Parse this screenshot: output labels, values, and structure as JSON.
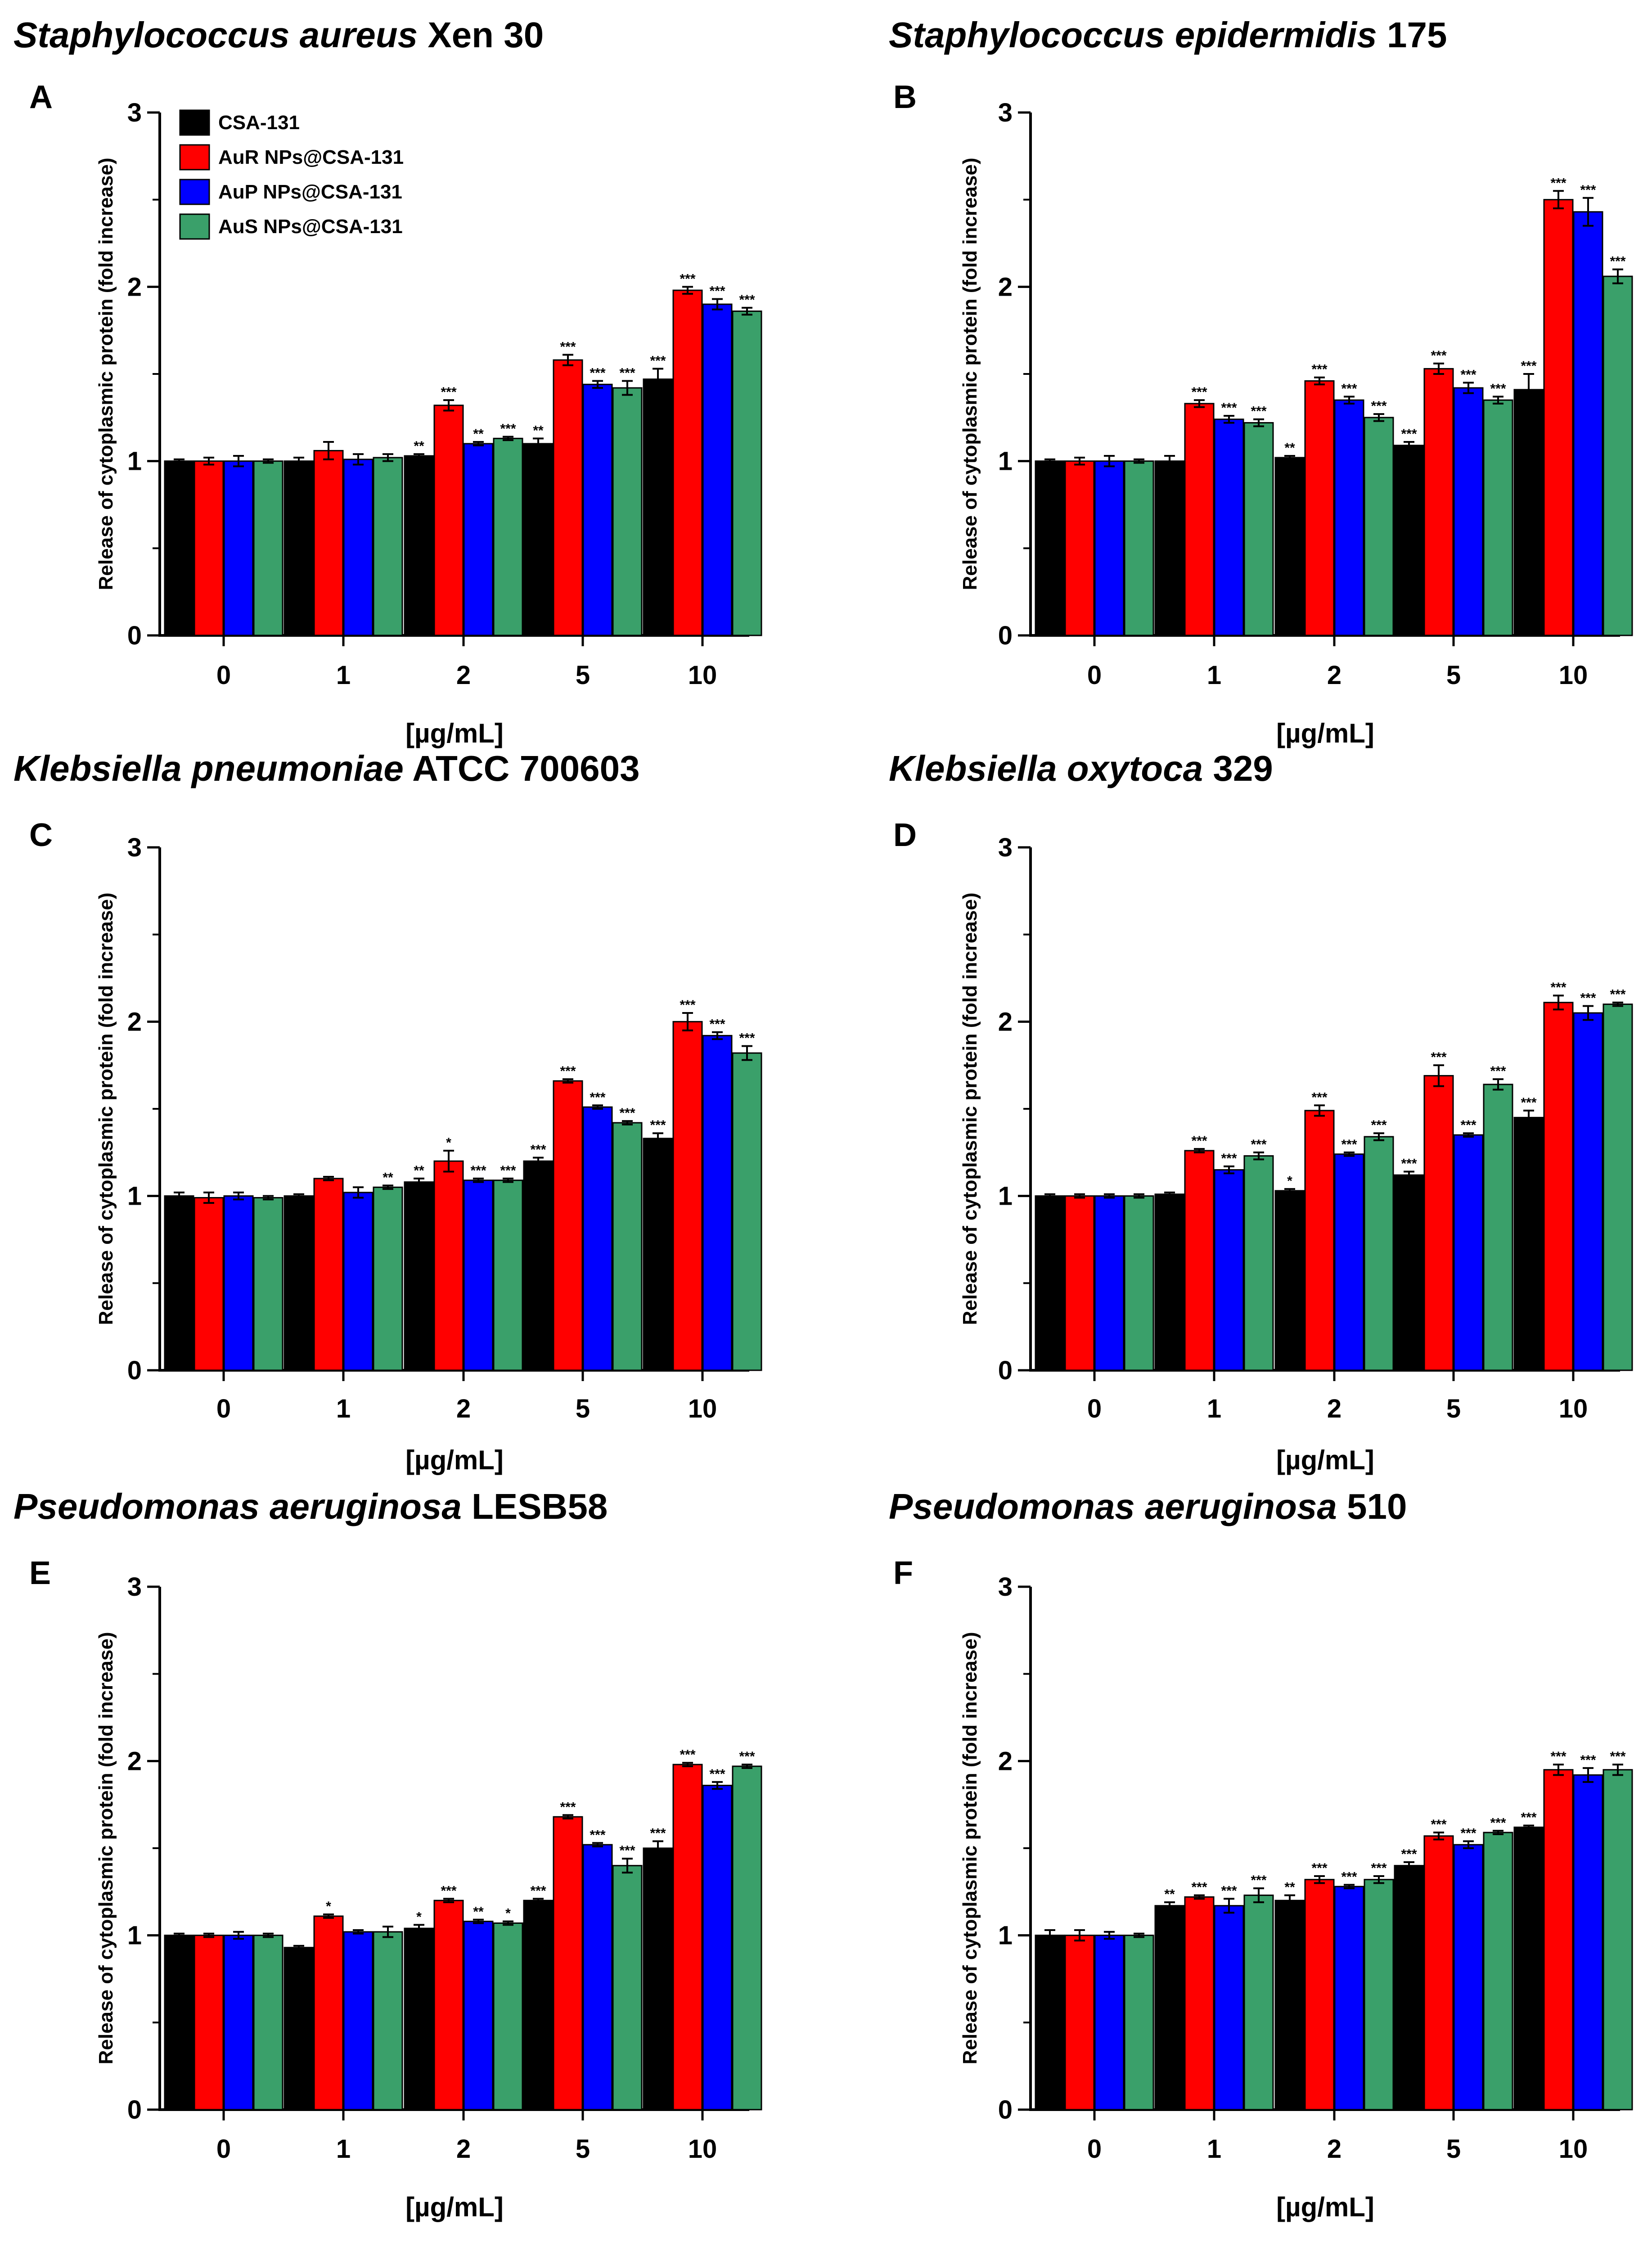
{
  "chart_data": [
    {
      "letter": "A",
      "title_italic": "Staphylococcus aureus",
      "title_rest": " Xen 30",
      "type": "bar",
      "categories": [
        "0",
        "1",
        "2",
        "5",
        "10"
      ],
      "ylabel": "Release of cytoplasmic protein (fold increase)",
      "xlabel": "[µg/mL]",
      "ylim": [
        0,
        3
      ],
      "yticks": [
        "0",
        "1",
        "2",
        "3"
      ],
      "series": [
        {
          "name": "CSA-131",
          "values": [
            1.0,
            1.0,
            1.03,
            1.1,
            1.47
          ],
          "errors": [
            0.01,
            0.02,
            0.01,
            0.03,
            0.06
          ],
          "sig": [
            "",
            "",
            "**",
            "**",
            "***"
          ]
        },
        {
          "name": "AuR NPs@CSA-131",
          "values": [
            1.0,
            1.06,
            1.32,
            1.58,
            1.98
          ],
          "errors": [
            0.02,
            0.05,
            0.03,
            0.03,
            0.02
          ],
          "sig": [
            "",
            "",
            "***",
            "***",
            "***"
          ]
        },
        {
          "name": "AuP NPs@CSA-131",
          "values": [
            1.0,
            1.01,
            1.1,
            1.44,
            1.9
          ],
          "errors": [
            0.03,
            0.03,
            0.01,
            0.02,
            0.03
          ],
          "sig": [
            "",
            "",
            "**",
            "***",
            "***"
          ]
        },
        {
          "name": "AuS NPs@CSA-131",
          "values": [
            1.0,
            1.02,
            1.13,
            1.42,
            1.86
          ],
          "errors": [
            0.01,
            0.02,
            0.01,
            0.04,
            0.02
          ],
          "sig": [
            "",
            "",
            "***",
            "***",
            "***"
          ]
        }
      ]
    },
    {
      "letter": "B",
      "title_italic": "Staphylococcus epidermidis",
      "title_rest": " 175",
      "type": "bar",
      "categories": [
        "0",
        "1",
        "2",
        "5",
        "10"
      ],
      "ylabel": "Release of cytoplasmic protein (fold increase)",
      "xlabel": "[µg/mL]",
      "ylim": [
        0,
        3
      ],
      "yticks": [
        "0",
        "1",
        "2",
        "3"
      ],
      "series": [
        {
          "name": "CSA-131",
          "values": [
            1.0,
            1.0,
            1.02,
            1.09,
            1.41
          ],
          "errors": [
            0.01,
            0.03,
            0.01,
            0.02,
            0.09
          ],
          "sig": [
            "",
            "",
            "**",
            "***",
            "***"
          ]
        },
        {
          "name": "AuR NPs@CSA-131",
          "values": [
            1.0,
            1.33,
            1.46,
            1.53,
            2.5
          ],
          "errors": [
            0.02,
            0.02,
            0.02,
            0.03,
            0.05
          ],
          "sig": [
            "",
            "***",
            "***",
            "***",
            "***"
          ]
        },
        {
          "name": "AuP NPs@CSA-131",
          "values": [
            1.0,
            1.24,
            1.35,
            1.42,
            2.43
          ],
          "errors": [
            0.03,
            0.02,
            0.02,
            0.03,
            0.08
          ],
          "sig": [
            "",
            "***",
            "***",
            "***",
            "***"
          ]
        },
        {
          "name": "AuS NPs@CSA-131",
          "values": [
            1.0,
            1.22,
            1.25,
            1.35,
            2.06
          ],
          "errors": [
            0.01,
            0.02,
            0.02,
            0.02,
            0.04
          ],
          "sig": [
            "",
            "***",
            "***",
            "***",
            "***"
          ]
        }
      ]
    },
    {
      "letter": "C",
      "title_italic": "Klebsiella pneumoniae",
      "title_rest": " ATCC 700603",
      "type": "bar",
      "categories": [
        "0",
        "1",
        "2",
        "5",
        "10"
      ],
      "ylabel": "Release of cytoplasmic protein (fold increase)",
      "xlabel": "[µg/mL]",
      "ylim": [
        0,
        3
      ],
      "yticks": [
        "0",
        "1",
        "2",
        "3"
      ],
      "series": [
        {
          "name": "CSA-131",
          "values": [
            1.0,
            1.0,
            1.08,
            1.2,
            1.33
          ],
          "errors": [
            0.02,
            0.01,
            0.02,
            0.02,
            0.03
          ],
          "sig": [
            "",
            "",
            "**",
            "***",
            "***"
          ]
        },
        {
          "name": "AuR NPs@CSA-131",
          "values": [
            0.99,
            1.1,
            1.2,
            1.66,
            2.0
          ],
          "errors": [
            0.03,
            0.01,
            0.06,
            0.01,
            0.05
          ],
          "sig": [
            "",
            "",
            "*",
            "***",
            "***"
          ]
        },
        {
          "name": "AuP NPs@CSA-131",
          "values": [
            1.0,
            1.02,
            1.09,
            1.51,
            1.92
          ],
          "errors": [
            0.02,
            0.03,
            0.01,
            0.01,
            0.02
          ],
          "sig": [
            "",
            "",
            "***",
            "***",
            "***"
          ]
        },
        {
          "name": "AuS NPs@CSA-131",
          "values": [
            0.99,
            1.05,
            1.09,
            1.42,
            1.82
          ],
          "errors": [
            0.01,
            0.01,
            0.01,
            0.01,
            0.04
          ],
          "sig": [
            "",
            "**",
            "***",
            "***",
            "***"
          ]
        }
      ]
    },
    {
      "letter": "D",
      "title_italic": "Klebsiella oxytoca",
      "title_rest": " 329",
      "type": "bar",
      "categories": [
        "0",
        "1",
        "2",
        "5",
        "10"
      ],
      "ylabel": "Release of cytoplasmic protein (fold increase)",
      "xlabel": "[µg/mL]",
      "ylim": [
        0,
        3
      ],
      "yticks": [
        "0",
        "1",
        "2",
        "3"
      ],
      "series": [
        {
          "name": "CSA-131",
          "values": [
            1.0,
            1.01,
            1.03,
            1.12,
            1.45
          ],
          "errors": [
            0.01,
            0.01,
            0.01,
            0.02,
            0.04
          ],
          "sig": [
            "",
            "",
            "*",
            "***",
            "***"
          ]
        },
        {
          "name": "AuR NPs@CSA-131",
          "values": [
            1.0,
            1.26,
            1.49,
            1.69,
            2.11
          ],
          "errors": [
            0.01,
            0.01,
            0.03,
            0.06,
            0.04
          ],
          "sig": [
            "",
            "***",
            "***",
            "***",
            "***"
          ]
        },
        {
          "name": "AuP NPs@CSA-131",
          "values": [
            1.0,
            1.15,
            1.24,
            1.35,
            2.05
          ],
          "errors": [
            0.01,
            0.02,
            0.01,
            0.01,
            0.04
          ],
          "sig": [
            "",
            "***",
            "***",
            "***",
            "***"
          ]
        },
        {
          "name": "AuS NPs@CSA-131",
          "values": [
            1.0,
            1.23,
            1.34,
            1.64,
            2.1
          ],
          "errors": [
            0.01,
            0.02,
            0.02,
            0.03,
            0.01
          ],
          "sig": [
            "",
            "***",
            "***",
            "***",
            "***"
          ]
        }
      ]
    },
    {
      "letter": "E",
      "title_italic": "Pseudomonas aeruginosa",
      "title_rest": " LESB58",
      "type": "bar",
      "categories": [
        "0",
        "1",
        "2",
        "5",
        "10"
      ],
      "ylabel": "Release of cytoplasmic protein (fold increase)",
      "xlabel": "[µg/mL]",
      "ylim": [
        0,
        3
      ],
      "yticks": [
        "0",
        "1",
        "2",
        "3"
      ],
      "series": [
        {
          "name": "CSA-131",
          "values": [
            1.0,
            0.93,
            1.04,
            1.2,
            1.5
          ],
          "errors": [
            0.01,
            0.01,
            0.02,
            0.01,
            0.04
          ],
          "sig": [
            "",
            "",
            "*",
            "***",
            "***"
          ]
        },
        {
          "name": "AuR NPs@CSA-131",
          "values": [
            1.0,
            1.11,
            1.2,
            1.68,
            1.98
          ],
          "errors": [
            0.01,
            0.01,
            0.01,
            0.01,
            0.01
          ],
          "sig": [
            "",
            "*",
            "***",
            "***",
            "***"
          ]
        },
        {
          "name": "AuP NPs@CSA-131",
          "values": [
            1.0,
            1.02,
            1.08,
            1.52,
            1.86
          ],
          "errors": [
            0.02,
            0.01,
            0.01,
            0.01,
            0.02
          ],
          "sig": [
            "",
            "",
            "**",
            "***",
            "***"
          ]
        },
        {
          "name": "AuS NPs@CSA-131",
          "values": [
            1.0,
            1.02,
            1.07,
            1.4,
            1.97
          ],
          "errors": [
            0.01,
            0.03,
            0.01,
            0.04,
            0.01
          ],
          "sig": [
            "",
            "",
            "*",
            "***",
            "***"
          ]
        }
      ]
    },
    {
      "letter": "F",
      "title_italic": "Pseudomonas aeruginosa",
      "title_rest": " 510",
      "type": "bar",
      "categories": [
        "0",
        "1",
        "2",
        "5",
        "10"
      ],
      "ylabel": "Release of cytoplasmic protein (fold increase)",
      "xlabel": "[µg/mL]",
      "ylim": [
        0,
        3
      ],
      "yticks": [
        "0",
        "1",
        "2",
        "3"
      ],
      "series": [
        {
          "name": "CSA-131",
          "values": [
            1.0,
            1.17,
            1.2,
            1.4,
            1.62
          ],
          "errors": [
            0.03,
            0.02,
            0.03,
            0.02,
            0.01
          ],
          "sig": [
            "",
            "**",
            "**",
            "***",
            "***"
          ]
        },
        {
          "name": "AuR NPs@CSA-131",
          "values": [
            1.0,
            1.22,
            1.32,
            1.57,
            1.95
          ],
          "errors": [
            0.03,
            0.01,
            0.02,
            0.02,
            0.03
          ],
          "sig": [
            "",
            "***",
            "***",
            "***",
            "***"
          ]
        },
        {
          "name": "AuP NPs@CSA-131",
          "values": [
            1.0,
            1.17,
            1.28,
            1.52,
            1.92
          ],
          "errors": [
            0.02,
            0.04,
            0.01,
            0.02,
            0.04
          ],
          "sig": [
            "",
            "***",
            "***",
            "***",
            "***"
          ]
        },
        {
          "name": "AuS NPs@CSA-131",
          "values": [
            1.0,
            1.23,
            1.32,
            1.59,
            1.95
          ],
          "errors": [
            0.01,
            0.04,
            0.02,
            0.01,
            0.03
          ],
          "sig": [
            "",
            "***",
            "***",
            "***",
            "***"
          ]
        }
      ]
    }
  ],
  "legend": {
    "items": [
      "CSA-131",
      "AuR NPs@CSA-131",
      "AuP NPs@CSA-131",
      "AuS NPs@CSA-131"
    ]
  },
  "colors": {
    "series": [
      "#000000",
      "#ff0000",
      "#0000ff",
      "#3aa06a"
    ]
  }
}
